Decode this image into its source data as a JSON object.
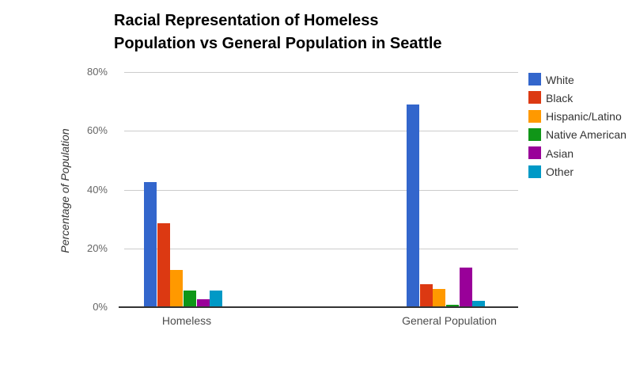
{
  "chart_data": {
    "type": "bar",
    "title": "Racial Representation of Homeless Population vs General Population in Seattle",
    "title_lines": [
      "Racial Representation of Homeless",
      "Population vs General Population in Seattle"
    ],
    "ylabel": "Percentage of Population",
    "xlabel": "",
    "categories": [
      "Homeless",
      "General Population"
    ],
    "series": [
      {
        "name": "White",
        "color": "#3366CC",
        "values": [
          42.6,
          69.0
        ]
      },
      {
        "name": "Black",
        "color": "#DC3912",
        "values": [
          28.7,
          7.7
        ]
      },
      {
        "name": "Hispanic/Latino",
        "color": "#FF9900",
        "values": [
          12.7,
          6.2
        ]
      },
      {
        "name": "Native American",
        "color": "#109618",
        "values": [
          5.8,
          0.9
        ]
      },
      {
        "name": "Asian",
        "color": "#990099",
        "values": [
          2.7,
          13.6
        ]
      },
      {
        "name": "Other",
        "color": "#0099C6",
        "values": [
          5.8,
          2.1
        ]
      }
    ],
    "y_ticks": [
      {
        "label": "80%",
        "value": 80
      },
      {
        "label": "60%",
        "value": 60
      },
      {
        "label": "40%",
        "value": 40
      },
      {
        "label": "20%",
        "value": 20
      },
      {
        "label": "0%",
        "value": 0
      }
    ],
    "ylim": [
      0,
      80
    ],
    "grid": true,
    "legend_position": "right",
    "background": "#ffffff",
    "title_color": "#000000",
    "gridline_color": "#cccccc",
    "axis_color": "#333333",
    "tick_text_color": "#666666",
    "category_text_color": "#4d4d4d",
    "legend_text_color": "#333333"
  }
}
